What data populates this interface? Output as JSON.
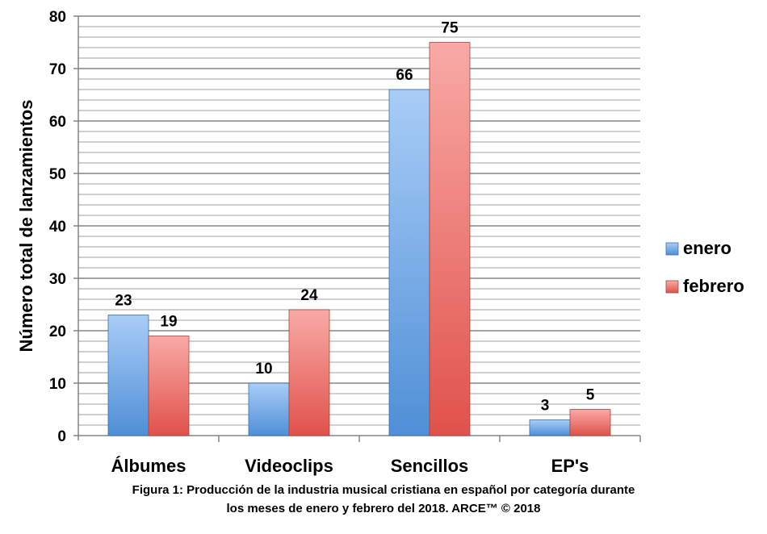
{
  "chart_data": {
    "type": "bar",
    "categories": [
      "Álbumes",
      "Videoclips",
      "Sencillos",
      "EP's"
    ],
    "series": [
      {
        "name": "enero",
        "values": [
          23,
          10,
          66,
          3
        ],
        "color": "#5b9bd5"
      },
      {
        "name": "febrero",
        "values": [
          19,
          24,
          75,
          5
        ],
        "color": "#e8605a"
      }
    ],
    "ylabel": "Número total de lanzamientos",
    "xlabel": "",
    "ylim": [
      0,
      80
    ],
    "yticks": [
      0,
      10,
      20,
      30,
      40,
      50,
      60,
      70,
      80
    ],
    "minor_step": 2,
    "grid": true,
    "legend_position": "right",
    "caption_line1": "Figura 1: Producción de la industria musical cristiana en español por categoría durante",
    "caption_line2": "los meses de enero y febrero del 2018.  ARCE™ © 2018"
  }
}
